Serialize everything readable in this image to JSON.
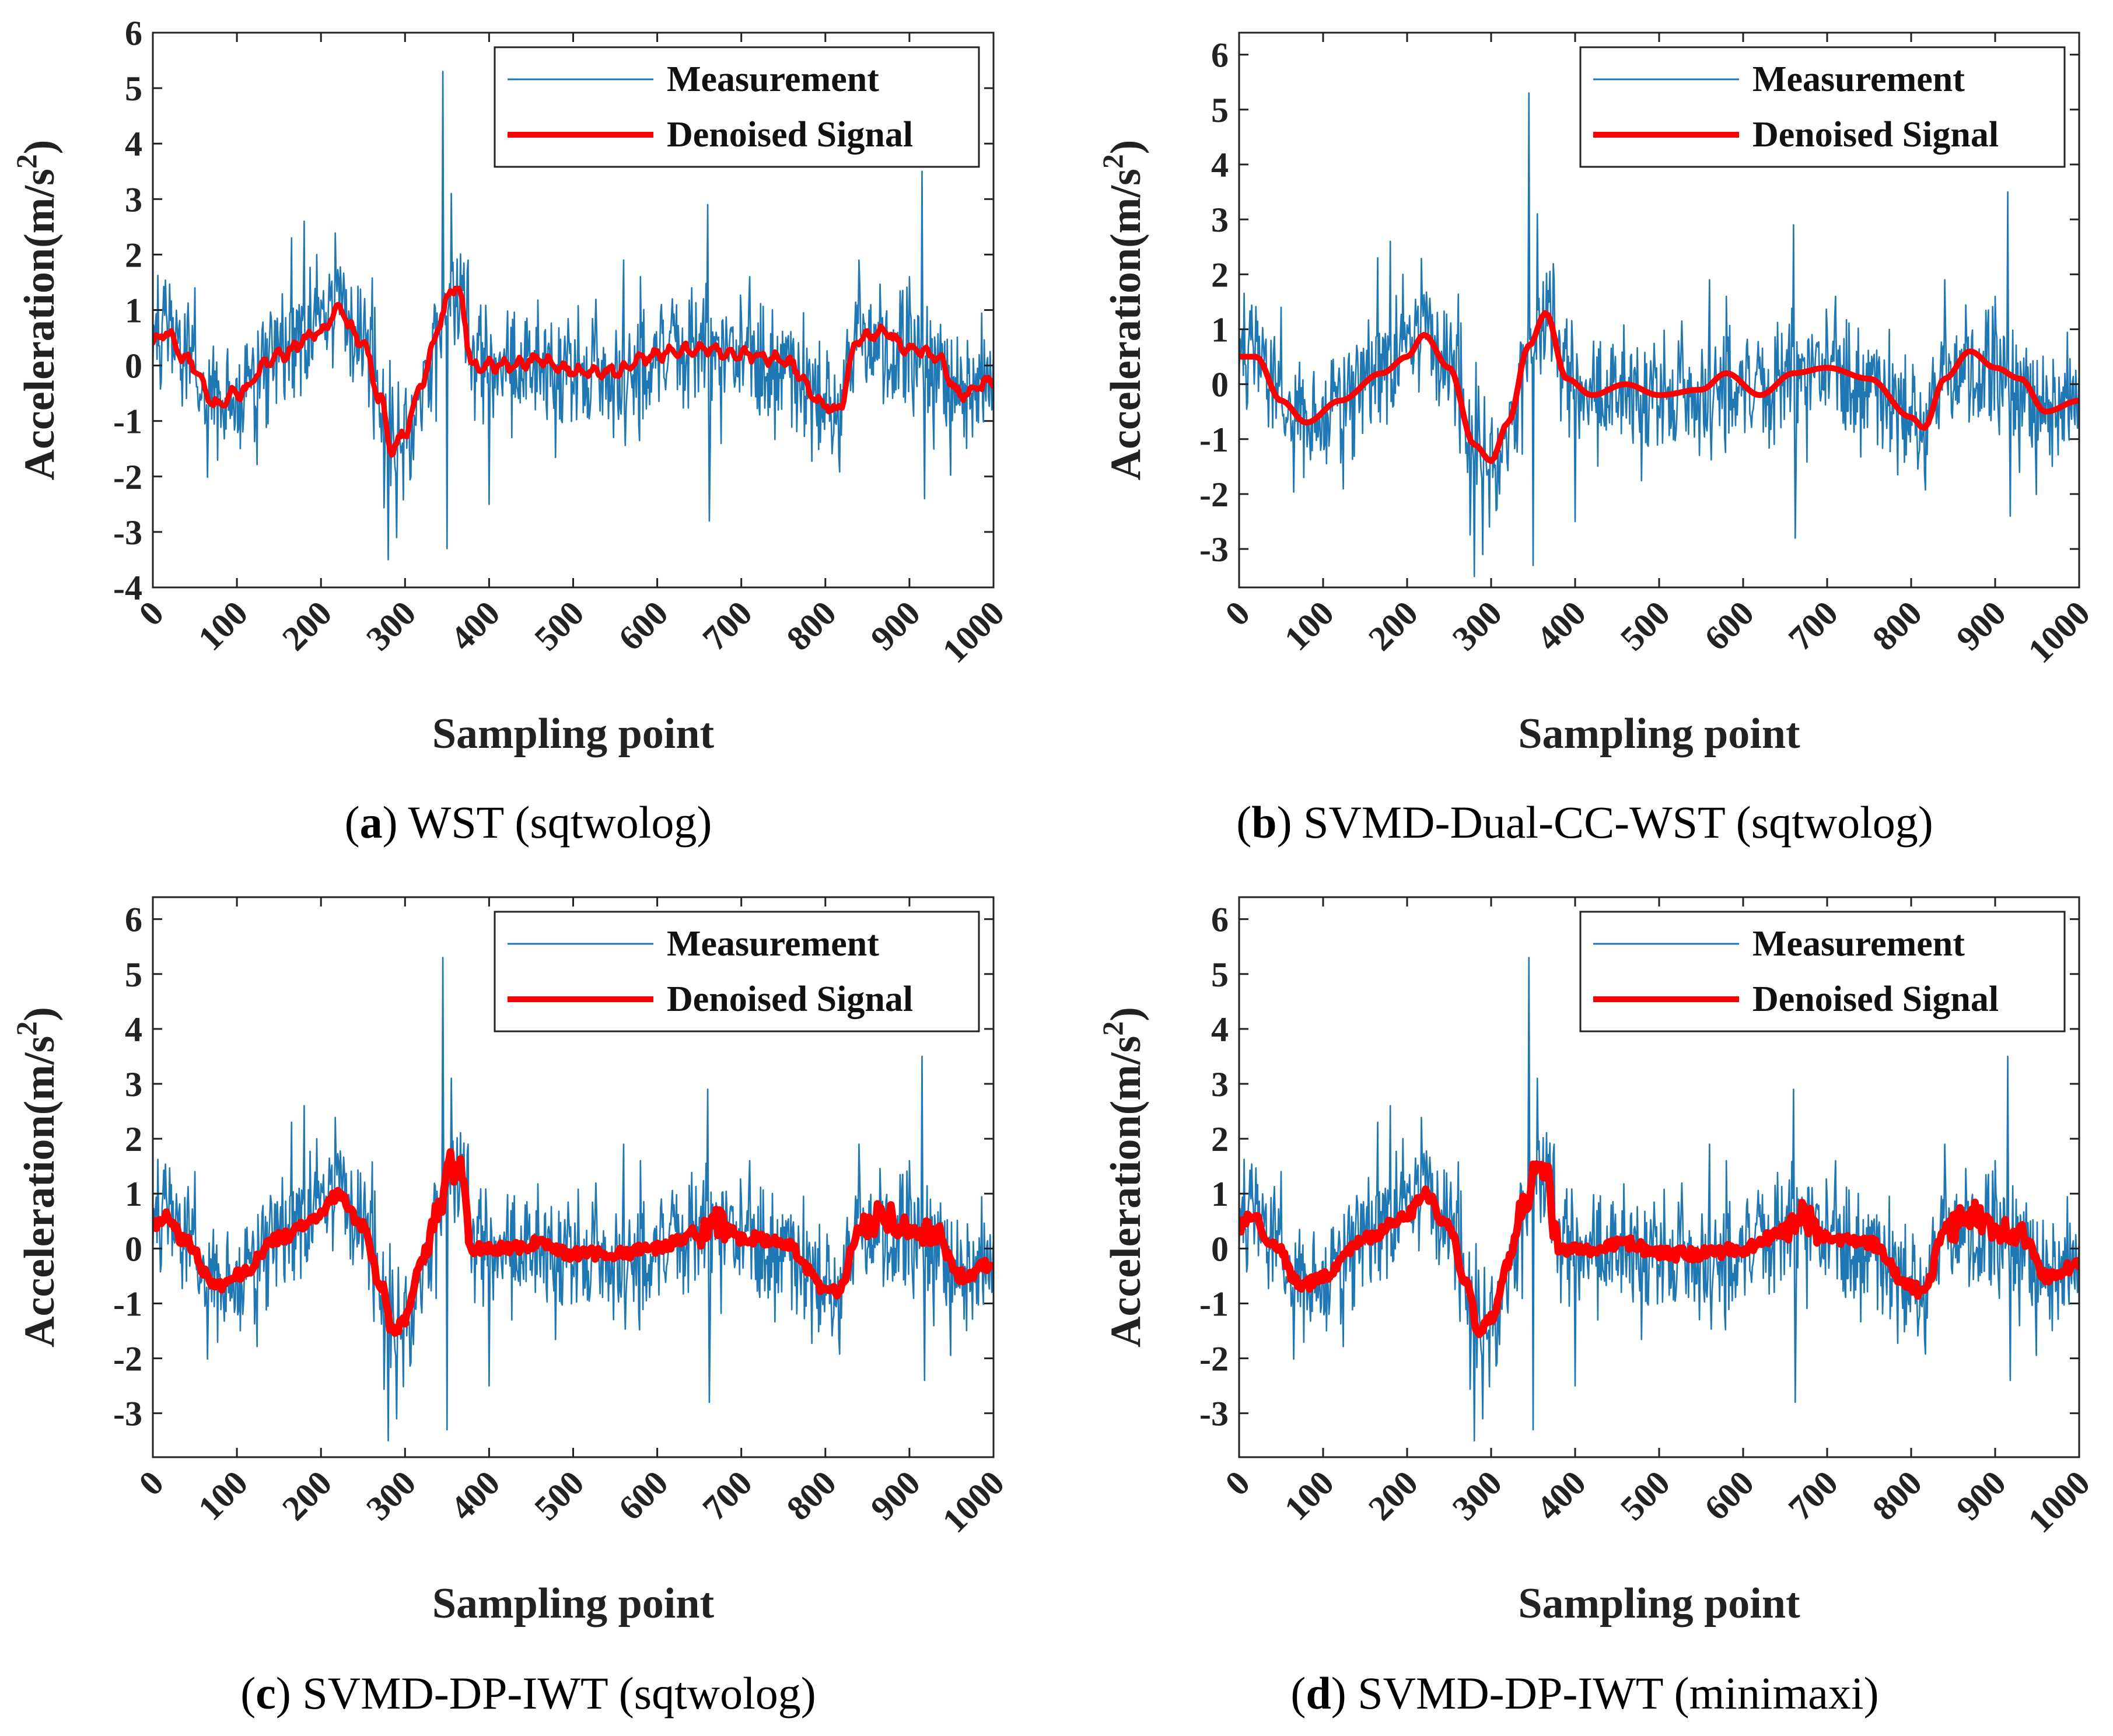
{
  "chart_data": [
    {
      "type": "line",
      "panel_label": "a",
      "caption": "WST (sqtwolog)",
      "xlabel": "Sampling point",
      "ylabel": "Acceleration(m/s",
      "ylabel_sup": "2",
      "ylabel_close": ")",
      "xlim": [
        0,
        1000
      ],
      "ylim": [
        -4,
        6
      ],
      "xticks": [
        "0",
        "100",
        "200",
        "300",
        "400",
        "500",
        "600",
        "700",
        "800",
        "900",
        "1000"
      ],
      "yticks": [
        "-4",
        "-3",
        "-2",
        "-1",
        "0",
        "1",
        "2",
        "3",
        "4",
        "5",
        "6"
      ],
      "legend": [
        "Measurement",
        "Denoised Signal"
      ],
      "series": [
        {
          "name": "Measurement",
          "color": "#1f77b4",
          "style": "noisy"
        },
        {
          "name": "Denoised Signal",
          "color": "#ff0000",
          "style": "smooth-wavy",
          "x": [
            0,
            15,
            40,
            75,
            100,
            150,
            200,
            220,
            250,
            270,
            285,
            300,
            320,
            340,
            355,
            365,
            380,
            420,
            460,
            500,
            550,
            600,
            650,
            700,
            750,
            800,
            815,
            840,
            870,
            900,
            930,
            960,
            1000
          ],
          "values": [
            0.4,
            0.6,
            0.1,
            -0.7,
            -0.5,
            0.2,
            0.6,
            1.0,
            0.4,
            -0.6,
            -1.5,
            -1.2,
            -0.3,
            0.7,
            1.4,
            1.3,
            0.0,
            0.0,
            0.1,
            -0.1,
            -0.1,
            0.2,
            0.3,
            0.2,
            0.1,
            -0.7,
            -0.8,
            0.5,
            0.6,
            0.3,
            0.2,
            -0.5,
            -0.3
          ]
        }
      ]
    },
    {
      "type": "line",
      "panel_label": "b",
      "caption": "SVMD-Dual-CC-WST (sqtwolog)",
      "xlabel": "Sampling point",
      "ylabel": "Acceleration(m/s",
      "ylabel_sup": "2",
      "ylabel_close": ")",
      "xlim": [
        0,
        1000
      ],
      "ylim": [
        -3.7,
        6.4
      ],
      "xticks": [
        "0",
        "100",
        "200",
        "300",
        "400",
        "500",
        "600",
        "700",
        "800",
        "900",
        "1000"
      ],
      "yticks": [
        "-3",
        "-2",
        "-1",
        "0",
        "1",
        "2",
        "3",
        "4",
        "5",
        "6"
      ],
      "legend": [
        "Measurement",
        "Denoised Signal"
      ],
      "series": [
        {
          "name": "Measurement",
          "color": "#1f77b4",
          "style": "noisy"
        },
        {
          "name": "Denoised Signal",
          "color": "#ff0000",
          "style": "smooth",
          "x": [
            0,
            20,
            50,
            80,
            120,
            170,
            200,
            220,
            250,
            280,
            300,
            320,
            345,
            365,
            390,
            420,
            460,
            500,
            550,
            580,
            620,
            660,
            700,
            750,
            800,
            815,
            840,
            870,
            900,
            930,
            960,
            1000
          ],
          "values": [
            0.5,
            0.5,
            -0.3,
            -0.7,
            -0.3,
            0.2,
            0.5,
            0.9,
            0.3,
            -1.1,
            -1.4,
            -0.7,
            0.7,
            1.3,
            0.1,
            -0.2,
            0.0,
            -0.2,
            -0.1,
            0.2,
            -0.2,
            0.2,
            0.3,
            0.1,
            -0.6,
            -0.8,
            0.1,
            0.6,
            0.3,
            0.1,
            -0.5,
            -0.3
          ]
        }
      ]
    },
    {
      "type": "line",
      "panel_label": "c",
      "caption": "SVMD-DP-IWT (sqtwolog)",
      "xlabel": "Sampling point",
      "ylabel": "Acceleration(m/s",
      "ylabel_sup": "2",
      "ylabel_close": ")",
      "xlim": [
        0,
        1000
      ],
      "ylim": [
        -3.8,
        6.4
      ],
      "xticks": [
        "0",
        "100",
        "200",
        "300",
        "400",
        "500",
        "600",
        "700",
        "800",
        "900",
        "1000"
      ],
      "yticks": [
        "-3",
        "-2",
        "-1",
        "0",
        "1",
        "2",
        "3",
        "4",
        "5",
        "6"
      ],
      "legend": [
        "Measurement",
        "Denoised Signal"
      ],
      "series": [
        {
          "name": "Measurement",
          "color": "#1f77b4",
          "style": "noisy"
        },
        {
          "name": "Denoised Signal",
          "color": "#ff0000",
          "style": "thick-noisy",
          "x": [
            0,
            15,
            40,
            75,
            100,
            150,
            200,
            220,
            250,
            270,
            285,
            300,
            320,
            340,
            355,
            365,
            380,
            420,
            460,
            500,
            550,
            600,
            650,
            670,
            700,
            750,
            800,
            815,
            840,
            870,
            900,
            930,
            960,
            1000
          ],
          "values": [
            0.4,
            0.6,
            0.1,
            -0.7,
            -0.5,
            0.2,
            0.6,
            1.0,
            0.4,
            -0.6,
            -1.5,
            -1.3,
            -0.3,
            0.8,
            1.5,
            1.4,
            0.0,
            0.0,
            0.1,
            -0.1,
            -0.1,
            0.0,
            0.3,
            0.5,
            0.2,
            0.1,
            -0.7,
            -0.8,
            0.3,
            0.6,
            0.3,
            0.3,
            -0.5,
            -0.3
          ]
        }
      ]
    },
    {
      "type": "line",
      "panel_label": "d",
      "caption": "SVMD-DP-IWT (minimaxi)",
      "xlabel": "Sampling point",
      "ylabel": "Acceleration(m/s",
      "ylabel_sup": "2",
      "ylabel_close": ")",
      "xlim": [
        0,
        1000
      ],
      "ylim": [
        -3.8,
        6.4
      ],
      "xticks": [
        "0",
        "100",
        "200",
        "300",
        "400",
        "500",
        "600",
        "700",
        "800",
        "900",
        "1000"
      ],
      "yticks": [
        "-3",
        "-2",
        "-1",
        "0",
        "1",
        "2",
        "3",
        "4",
        "5",
        "6"
      ],
      "legend": [
        "Measurement",
        "Denoised Signal"
      ],
      "series": [
        {
          "name": "Measurement",
          "color": "#1f77b4",
          "style": "noisy"
        },
        {
          "name": "Denoised Signal",
          "color": "#ff0000",
          "style": "thick-noisy",
          "x": [
            0,
            15,
            40,
            75,
            100,
            150,
            200,
            220,
            250,
            270,
            285,
            300,
            320,
            340,
            355,
            365,
            380,
            420,
            460,
            500,
            550,
            600,
            650,
            670,
            700,
            750,
            800,
            815,
            840,
            870,
            900,
            930,
            960,
            1000
          ],
          "values": [
            0.4,
            0.6,
            0.1,
            -0.7,
            -0.5,
            0.2,
            0.6,
            1.0,
            0.4,
            -0.6,
            -1.5,
            -1.3,
            -0.3,
            0.8,
            1.5,
            1.4,
            0.0,
            0.0,
            0.1,
            -0.1,
            -0.1,
            0.0,
            0.3,
            0.6,
            0.2,
            0.1,
            -0.7,
            -0.8,
            0.3,
            0.6,
            0.3,
            0.3,
            -0.5,
            -0.3
          ]
        }
      ]
    }
  ],
  "colors": {
    "measurement": "#1f77b4",
    "denoised": "#ff0000",
    "axis": "#222222"
  }
}
